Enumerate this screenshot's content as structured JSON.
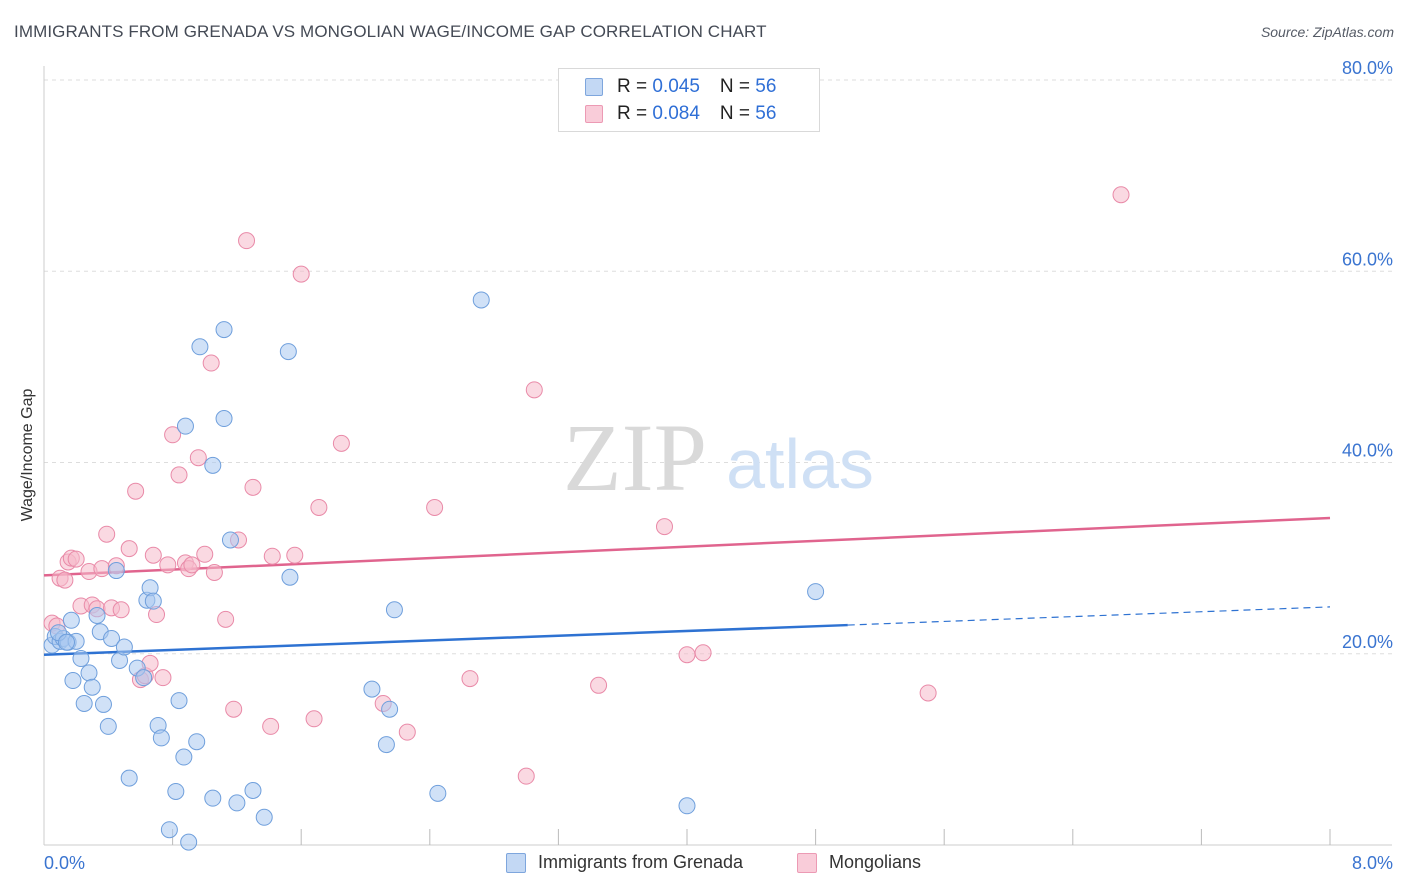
{
  "title": "IMMIGRANTS FROM GRENADA VS MONGOLIAN WAGE/INCOME GAP CORRELATION CHART",
  "source": "Source: ZipAtlas.com",
  "watermark": {
    "zip": "ZIP",
    "atlas": "atlas"
  },
  "legend": {
    "rows": [
      {
        "r_label": "R = ",
        "r_value": "0.045",
        "n_label": "N = ",
        "n_value": "56"
      },
      {
        "r_label": "R = ",
        "r_value": "0.084",
        "n_label": "N = ",
        "n_value": "56"
      }
    ]
  },
  "colors": {
    "blue_fill": "#a9c8f0",
    "blue_stroke": "#6f9fdc",
    "blue_line": "#2e72d2",
    "pink_fill": "#f5b9cb",
    "pink_stroke": "#e98aa8",
    "pink_line": "#e0648e",
    "axis_text": "#3a74d0",
    "grid": "#dddddd"
  },
  "chart_data": {
    "type": "scatter",
    "title": "IMMIGRANTS FROM GRENADA VS MONGOLIAN WAGE/INCOME GAP CORRELATION CHART",
    "xlabel": "",
    "ylabel": "Wage/Income Gap",
    "xlim": [
      0,
      8
    ],
    "ylim": [
      0,
      80
    ],
    "x_tick_labels": [
      "0.0%",
      "8.0%"
    ],
    "y_ticks": [
      20,
      40,
      60,
      80
    ],
    "y_tick_labels": [
      "20.0%",
      "40.0%",
      "60.0%",
      "80.0%"
    ],
    "grid": true,
    "series": [
      {
        "name": "Immigrants from Grenada",
        "r": 0.045,
        "n": 56,
        "trend": {
          "x0": 0.0,
          "y0": 19.9,
          "x1": 5.0,
          "y1": 23.0,
          "dashed_to_x": 8.0,
          "dashed_to_y": 24.9
        },
        "points": [
          [
            0.05,
            20.9
          ],
          [
            0.07,
            21.8
          ],
          [
            0.1,
            21.3
          ],
          [
            0.12,
            21.6
          ],
          [
            0.15,
            21.2
          ],
          [
            0.17,
            23.5
          ],
          [
            0.18,
            17.2
          ],
          [
            0.2,
            21.3
          ],
          [
            0.23,
            19.5
          ],
          [
            0.25,
            14.8
          ],
          [
            0.28,
            18.0
          ],
          [
            0.3,
            16.5
          ],
          [
            0.33,
            24.0
          ],
          [
            0.35,
            22.3
          ],
          [
            0.37,
            14.7
          ],
          [
            0.4,
            12.4
          ],
          [
            0.42,
            21.6
          ],
          [
            0.45,
            28.7
          ],
          [
            0.47,
            19.3
          ],
          [
            0.5,
            20.7
          ],
          [
            0.53,
            7.0
          ],
          [
            0.58,
            18.5
          ],
          [
            0.62,
            17.5
          ],
          [
            0.64,
            25.6
          ],
          [
            0.66,
            26.9
          ],
          [
            0.68,
            25.5
          ],
          [
            0.71,
            12.5
          ],
          [
            0.73,
            11.2
          ],
          [
            0.78,
            1.6
          ],
          [
            0.82,
            5.6
          ],
          [
            0.84,
            15.1
          ],
          [
            0.87,
            9.2
          ],
          [
            0.88,
            43.8
          ],
          [
            0.9,
            0.3
          ],
          [
            0.95,
            10.8
          ],
          [
            0.97,
            52.1
          ],
          [
            1.05,
            4.9
          ],
          [
            1.05,
            39.7
          ],
          [
            1.12,
            44.6
          ],
          [
            1.12,
            53.9
          ],
          [
            1.16,
            31.9
          ],
          [
            1.2,
            4.4
          ],
          [
            1.3,
            5.7
          ],
          [
            1.37,
            2.9
          ],
          [
            1.52,
            51.6
          ],
          [
            1.53,
            28.0
          ],
          [
            2.04,
            16.3
          ],
          [
            2.13,
            10.5
          ],
          [
            2.15,
            14.2
          ],
          [
            2.18,
            24.6
          ],
          [
            2.45,
            5.4
          ],
          [
            2.72,
            57.0
          ],
          [
            4.0,
            4.1
          ],
          [
            4.8,
            26.5
          ],
          [
            0.09,
            22.2
          ],
          [
            0.14,
            21.2
          ]
        ]
      },
      {
        "name": "Mongolians",
        "r": 0.084,
        "n": 56,
        "trend": {
          "x0": 0.0,
          "y0": 28.2,
          "x1": 8.0,
          "y1": 34.2
        },
        "points": [
          [
            0.05,
            23.2
          ],
          [
            0.08,
            22.9
          ],
          [
            0.1,
            27.9
          ],
          [
            0.13,
            27.7
          ],
          [
            0.15,
            29.6
          ],
          [
            0.17,
            30.0
          ],
          [
            0.2,
            29.9
          ],
          [
            0.23,
            25.0
          ],
          [
            0.28,
            28.6
          ],
          [
            0.3,
            25.1
          ],
          [
            0.33,
            24.7
          ],
          [
            0.36,
            28.9
          ],
          [
            0.39,
            32.5
          ],
          [
            0.42,
            24.8
          ],
          [
            0.45,
            29.2
          ],
          [
            0.48,
            24.6
          ],
          [
            0.53,
            31.0
          ],
          [
            0.57,
            37.0
          ],
          [
            0.6,
            17.3
          ],
          [
            0.63,
            17.7
          ],
          [
            0.66,
            19.0
          ],
          [
            0.68,
            30.3
          ],
          [
            0.7,
            24.1
          ],
          [
            0.74,
            17.5
          ],
          [
            0.77,
            29.3
          ],
          [
            0.8,
            42.9
          ],
          [
            0.84,
            38.7
          ],
          [
            0.88,
            29.5
          ],
          [
            0.9,
            28.9
          ],
          [
            0.92,
            29.3
          ],
          [
            0.96,
            40.5
          ],
          [
            1.0,
            30.4
          ],
          [
            1.04,
            50.4
          ],
          [
            1.06,
            28.5
          ],
          [
            1.13,
            23.6
          ],
          [
            1.18,
            14.2
          ],
          [
            1.21,
            31.9
          ],
          [
            1.26,
            63.2
          ],
          [
            1.3,
            37.4
          ],
          [
            1.41,
            12.4
          ],
          [
            1.42,
            30.2
          ],
          [
            1.56,
            30.3
          ],
          [
            1.6,
            59.7
          ],
          [
            1.68,
            13.2
          ],
          [
            1.71,
            35.3
          ],
          [
            1.85,
            42.0
          ],
          [
            2.11,
            14.8
          ],
          [
            2.26,
            11.8
          ],
          [
            2.43,
            35.3
          ],
          [
            2.65,
            17.4
          ],
          [
            3.0,
            7.2
          ],
          [
            3.05,
            47.6
          ],
          [
            3.45,
            16.7
          ],
          [
            3.86,
            33.3
          ],
          [
            4.0,
            19.9
          ],
          [
            4.1,
            20.1
          ]
        ],
        "extra_points": [
          [
            5.5,
            15.9
          ],
          [
            6.7,
            68.0
          ]
        ]
      }
    ]
  },
  "bottom_legend": {
    "blue_label": "Immigrants from Grenada",
    "pink_label": "Mongolians"
  }
}
